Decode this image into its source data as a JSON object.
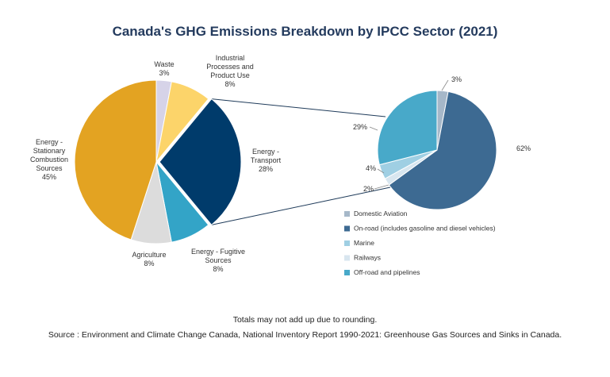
{
  "chart_data": [
    {
      "type": "pie",
      "title": "Canada's GHG Emissions Breakdown by IPCC Sector (2021)",
      "slices": [
        {
          "label": "Waste",
          "value": 3,
          "display": "3%",
          "color": "#d6d3e8"
        },
        {
          "label": "Industrial Processes and Product Use",
          "value": 8,
          "display": "8%",
          "color": "#fcd46a"
        },
        {
          "label": "Energy - Transport",
          "value": 28,
          "display": "28%",
          "color": "#003b6b"
        },
        {
          "label": "Energy - Fugitive Sources",
          "value": 8,
          "display": "8%",
          "color": "#33a4c7"
        },
        {
          "label": "Agriculture",
          "value": 8,
          "display": "8%",
          "color": "#dcdcdc"
        },
        {
          "label": "Energy - Stationary Combustion Sources",
          "value": 45,
          "display": "45%",
          "color": "#e3a322"
        }
      ]
    },
    {
      "type": "pie",
      "title": "",
      "slices": [
        {
          "label": "Domestic Aviation",
          "value": 3,
          "display": "3%",
          "color": "#a6b8c9"
        },
        {
          "label": "On-road (includes gasoline and diesel vehicles)",
          "value": 62,
          "display": "62%",
          "color": "#3d6a92"
        },
        {
          "label": "Railways",
          "value": 2,
          "display": "2%",
          "color": "#d8e6ef"
        },
        {
          "label": "Marine",
          "value": 4,
          "display": "4%",
          "color": "#9fcfe3"
        },
        {
          "label": "Off-road and pipelines",
          "value": 29,
          "display": "29%",
          "color": "#48a9c9"
        }
      ],
      "legend": [
        {
          "label": "Domestic Aviation",
          "color": "#a6b8c9"
        },
        {
          "label": "On-road (includes gasoline and diesel vehicles)",
          "color": "#3d6a92"
        },
        {
          "label": "Marine",
          "color": "#9fcfe3"
        },
        {
          "label": "Railways",
          "color": "#d8e6ef"
        },
        {
          "label": "Off-road and pipelines",
          "color": "#48a9c9"
        }
      ],
      "legend_position": "bottom"
    }
  ],
  "notes": {
    "rounding": "Totals may not add up due to rounding.",
    "source": "Source : Environment and Climate Change Canada, National Inventory Report 1990-2021:  Greenhouse Gas Sources and Sinks in Canada."
  }
}
